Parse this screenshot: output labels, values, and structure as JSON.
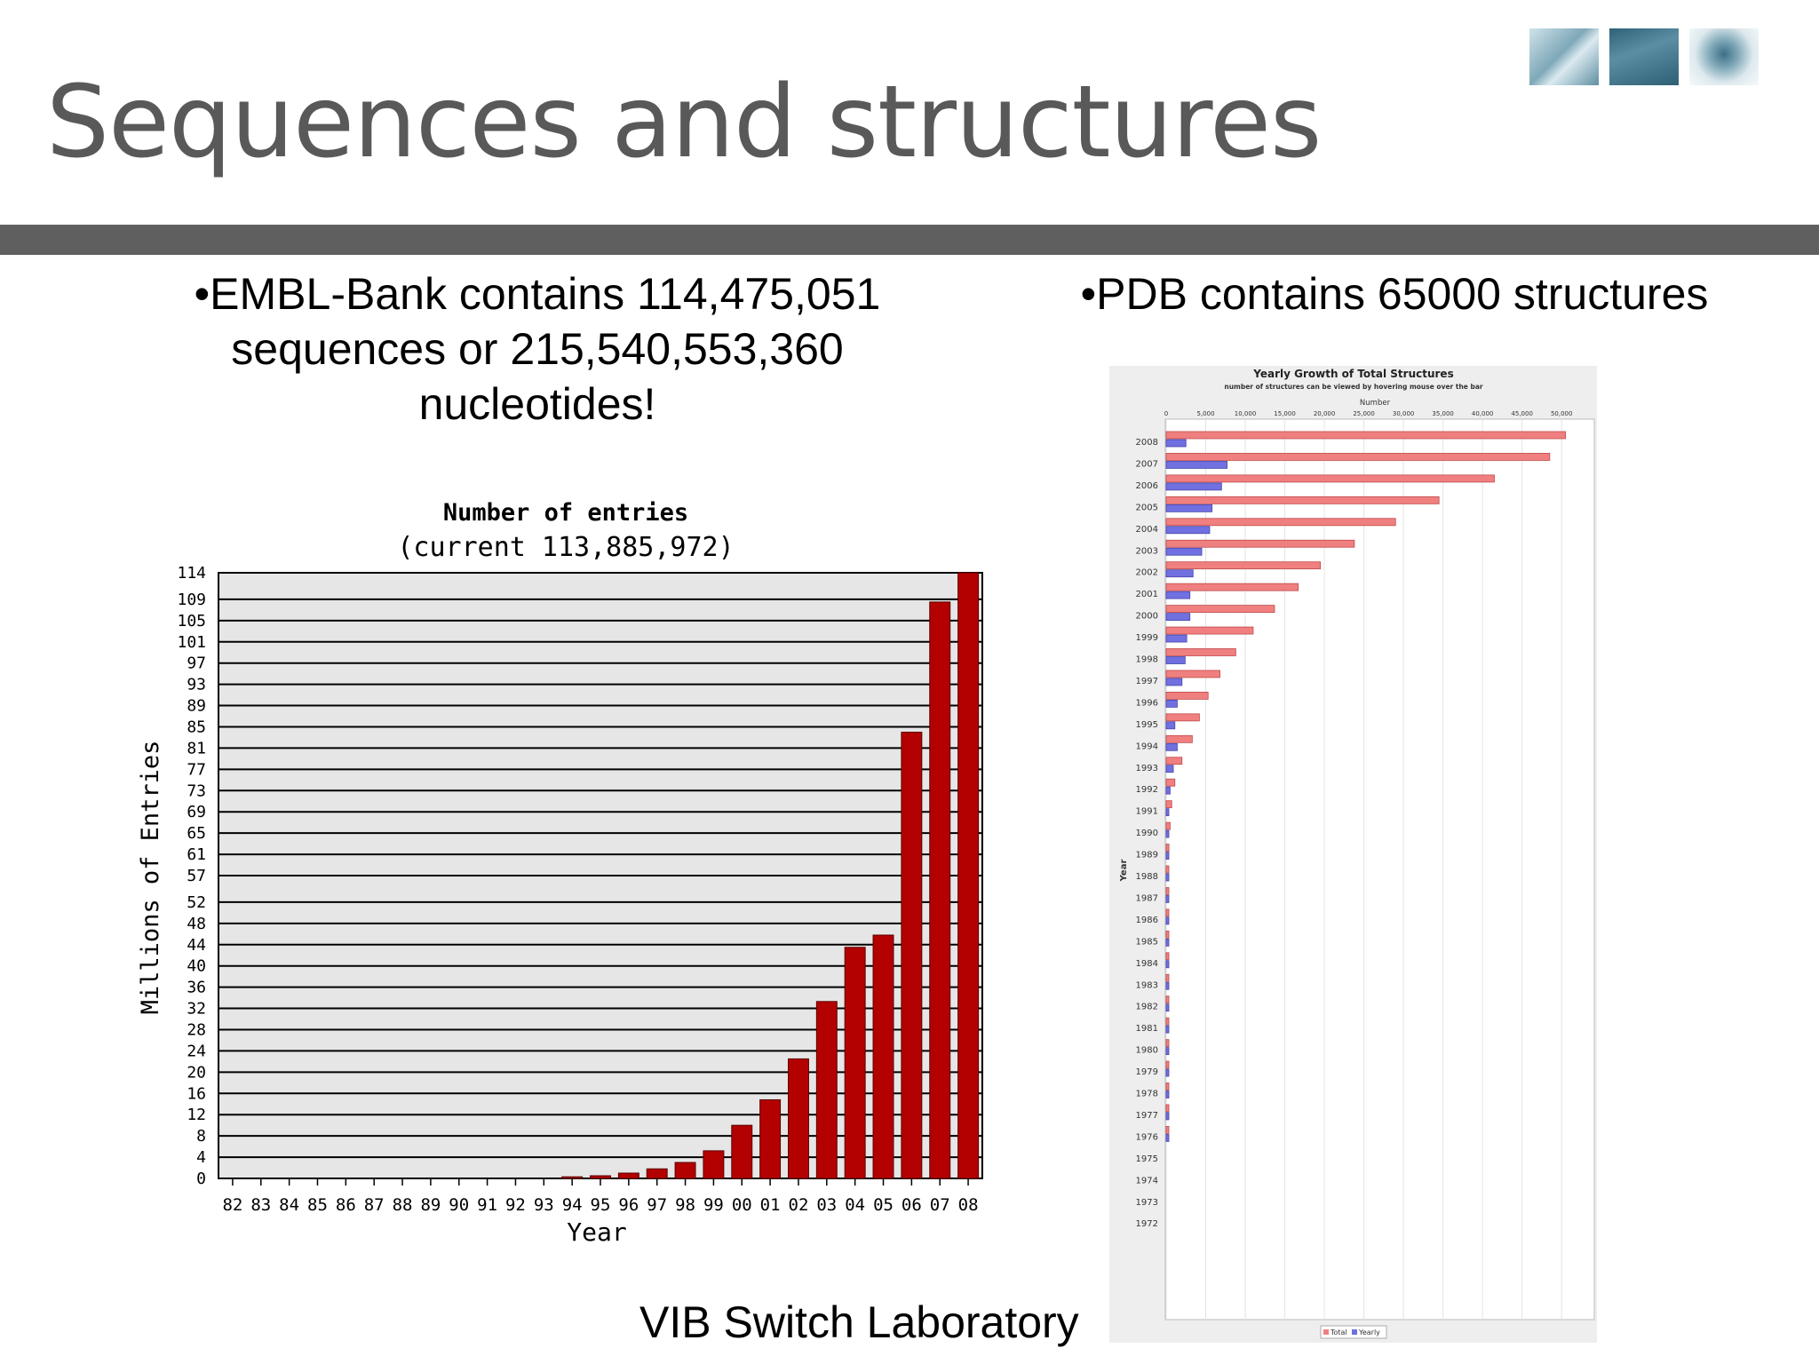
{
  "slide": {
    "title": "Sequences and structures",
    "left_bullet": "•EMBL-Bank  contains 114,475,051 sequences or 215,540,553,360 nucleotides!",
    "right_bullet": "•PDB contains 65000 structures",
    "footer": "VIB Switch Laboratory",
    "logo_icons": [
      "logo-image-1",
      "logo-image-2",
      "logo-image-3"
    ],
    "colors": {
      "rule": "#5f5f5f",
      "title": "#595959"
    }
  },
  "chart_data": [
    {
      "type": "bar",
      "title": "Number of entries",
      "subtitle": "(current 113,885,972)",
      "xlabel": "Year",
      "ylabel": "Millions of Entries",
      "categories": [
        "82",
        "83",
        "84",
        "85",
        "86",
        "87",
        "88",
        "89",
        "90",
        "91",
        "92",
        "93",
        "94",
        "95",
        "96",
        "97",
        "98",
        "99",
        "00",
        "01",
        "02",
        "03",
        "04",
        "05",
        "06",
        "07",
        "08"
      ],
      "values": [
        0,
        0,
        0,
        0,
        0,
        0,
        0,
        0,
        0,
        0,
        0,
        0,
        0.3,
        0.5,
        1,
        1.8,
        3,
        5.2,
        10,
        14.8,
        22.5,
        33.3,
        43.5,
        45.8,
        84,
        108.5,
        114
      ],
      "ylim": [
        0,
        114
      ],
      "yticks": [
        "0",
        "4",
        "8",
        "12",
        "16",
        "20",
        "24",
        "28",
        "32",
        "36",
        "40",
        "44",
        "48",
        "52",
        "57",
        "61",
        "65",
        "69",
        "73",
        "77",
        "81",
        "85",
        "89",
        "93",
        "97",
        "101",
        "105",
        "109",
        "114"
      ],
      "grid": true,
      "colors": {
        "bar": "#b30000",
        "plot_bg": "#e6e6e6"
      }
    },
    {
      "type": "bar",
      "orientation": "horizontal",
      "title": "Yearly Growth of Total Structures",
      "subtitle": "number of structures can be viewed by hovering mouse over the bar",
      "xlabel": "Number",
      "ylabel": "Year",
      "categories": [
        "2008",
        "2007",
        "2006",
        "2005",
        "2004",
        "2003",
        "2002",
        "2001",
        "2000",
        "1999",
        "1998",
        "1997",
        "1996",
        "1995",
        "1994",
        "1993",
        "1992",
        "1991",
        "1990",
        "1989",
        "1988",
        "1987",
        "1986",
        "1985",
        "1984",
        "1983",
        "1982",
        "1981",
        "1980",
        "1979",
        "1978",
        "1977",
        "1976",
        "1975",
        "1974",
        "1973",
        "1972"
      ],
      "series": [
        {
          "name": "Total",
          "values": [
            50500,
            48500,
            41500,
            34500,
            29000,
            23800,
            19500,
            16700,
            13700,
            11000,
            8800,
            6800,
            5300,
            4200,
            3300,
            2000,
            1100,
            700,
            500,
            350,
            250,
            200,
            170,
            150,
            130,
            110,
            90,
            70,
            60,
            45,
            35,
            25,
            15,
            0,
            0,
            0,
            0
          ]
        },
        {
          "name": "Yearly",
          "values": [
            2500,
            7700,
            7000,
            5800,
            5500,
            4500,
            3400,
            3000,
            3000,
            2600,
            2400,
            2000,
            1400,
            1100,
            1400,
            900,
            500,
            250,
            170,
            150,
            90,
            40,
            25,
            25,
            20,
            20,
            20,
            15,
            10,
            10,
            10,
            10,
            5,
            0,
            0,
            0,
            0
          ]
        }
      ],
      "xlim": [
        0,
        52000
      ],
      "xticks": [
        "0",
        "5,000",
        "10,000",
        "15,000",
        "20,000",
        "25,000",
        "30,000",
        "35,000",
        "40,000",
        "45,000",
        "50,000"
      ],
      "legend": "bottom-center",
      "colors": {
        "Total": "#f08080",
        "Yearly": "#7070e0"
      }
    }
  ]
}
